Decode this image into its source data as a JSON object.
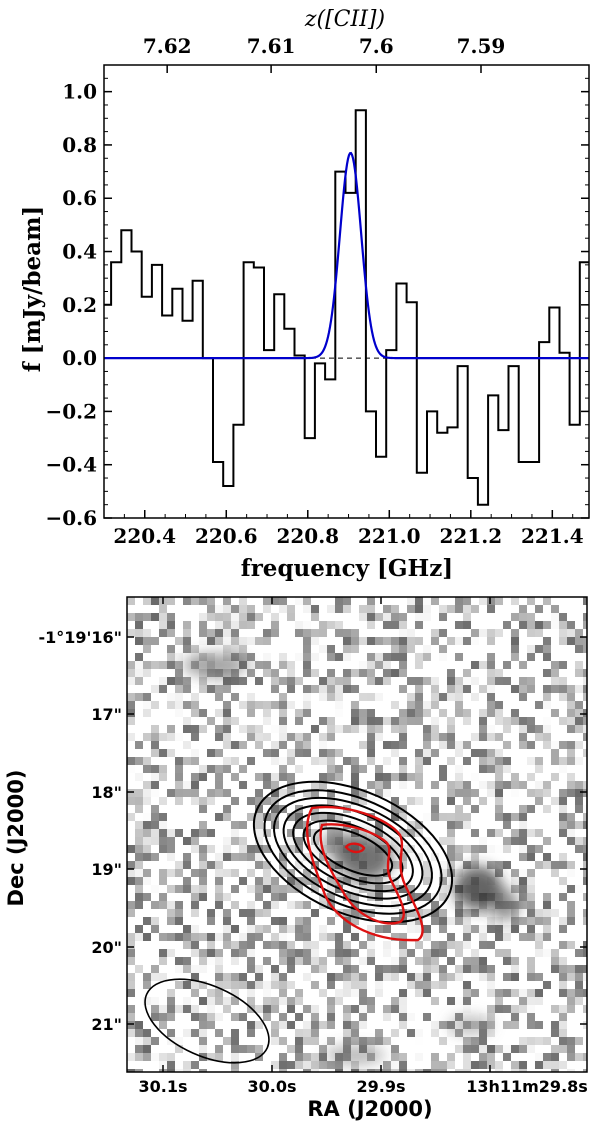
{
  "chart_data": [
    {
      "type": "line",
      "title": "",
      "xlabel": "frequency [GHz]",
      "ylabel": "f [mJy/beam]",
      "top_axis_label": "z([CII])",
      "xlim": [
        220.3,
        221.49
      ],
      "ylim": [
        -0.6,
        1.1
      ],
      "x_ticks": [
        220.4,
        220.6,
        220.8,
        221.0,
        221.2,
        221.4
      ],
      "x_tick_labels": [
        "220.4",
        "220.6",
        "220.8",
        "221.0",
        "221.2",
        "221.4"
      ],
      "y_ticks": [
        -0.6,
        -0.4,
        -0.2,
        0.0,
        0.2,
        0.4,
        0.6,
        0.8,
        1.0
      ],
      "y_tick_labels": [
        "−0.6",
        "−0.4",
        "−0.2",
        "0.0",
        "0.2",
        "0.4",
        "0.6",
        "0.8",
        "1.0"
      ],
      "top_ticks": [
        {
          "label": "7.62",
          "freq": 220.455
        },
        {
          "label": "7.61",
          "freq": 220.71
        },
        {
          "label": "7.6",
          "freq": 220.968
        },
        {
          "label": "7.59",
          "freq": 221.225
        }
      ],
      "zero_line": {
        "style": "dashed",
        "value": 0.0
      },
      "series": [
        {
          "name": "spectrum",
          "style": "steps",
          "color": "#000000",
          "x": [
            220.305,
            220.33,
            220.355,
            220.38,
            220.405,
            220.43,
            220.455,
            220.48,
            220.505,
            220.53,
            220.555,
            220.58,
            220.605,
            220.63,
            220.655,
            220.68,
            220.705,
            220.73,
            220.755,
            220.78,
            220.805,
            220.83,
            220.855,
            220.88,
            220.905,
            220.93,
            220.955,
            220.98,
            221.005,
            221.03,
            221.055,
            221.08,
            221.105,
            221.13,
            221.155,
            221.18,
            221.205,
            221.23,
            221.255,
            221.28,
            221.305,
            221.33,
            221.355,
            221.38,
            221.405,
            221.43,
            221.455,
            221.48
          ],
          "y": [
            0.2,
            0.36,
            0.48,
            0.4,
            0.23,
            0.35,
            0.16,
            0.26,
            0.14,
            0.29,
            0.0,
            -0.39,
            -0.48,
            -0.25,
            0.36,
            0.34,
            0.03,
            0.24,
            0.11,
            0.01,
            -0.3,
            -0.02,
            -0.08,
            0.7,
            0.62,
            0.93,
            -0.2,
            -0.37,
            0.03,
            0.28,
            0.21,
            -0.43,
            -0.2,
            -0.28,
            -0.26,
            -0.03,
            -0.45,
            -0.55,
            -0.14,
            -0.27,
            -0.03,
            -0.39,
            -0.39,
            0.06,
            0.19,
            0.02,
            -0.25,
            0.36
          ]
        },
        {
          "name": "gaussian fit",
          "style": "line",
          "color": "#0000cc",
          "model": {
            "amplitude": 0.77,
            "center": 220.905,
            "sigma": 0.026
          }
        }
      ]
    },
    {
      "type": "heatmap",
      "title": "",
      "xlabel": "RA (J2000)",
      "ylabel": "Dec (J2000)",
      "x_tick_labels": [
        "30.1s",
        "30.0s",
        "29.9s",
        "13h11m29.8s"
      ],
      "y_tick_labels": [
        "-1°19'16\"",
        "17\"",
        "18\"",
        "19\"",
        "20\"",
        "21\""
      ],
      "background": "grayscale image",
      "contours": [
        {
          "name": "black contours",
          "color": "#000000",
          "levels": 7
        },
        {
          "name": "red contours",
          "color": "#dd1111",
          "levels": 3
        }
      ],
      "beam": {
        "shape": "ellipse",
        "color": "#000000"
      }
    }
  ]
}
